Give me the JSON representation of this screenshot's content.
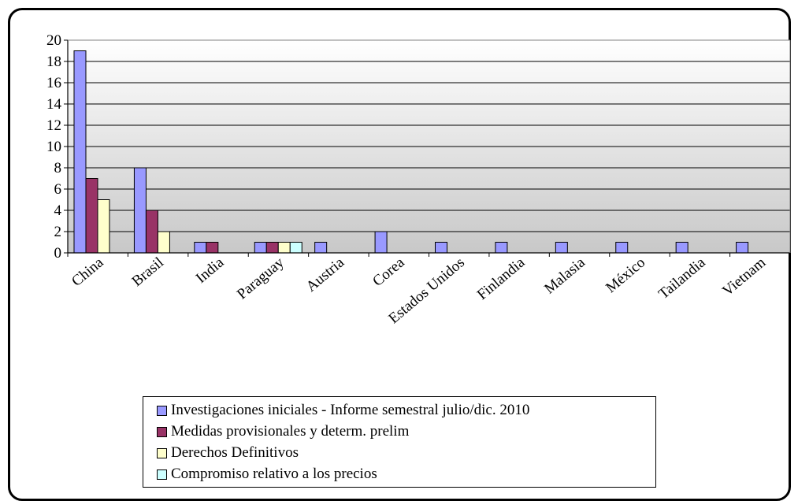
{
  "chart_data": {
    "type": "bar",
    "categories": [
      "China",
      "Brasil",
      "India",
      "Paraguay",
      "Austria",
      "Corea",
      "Estados Unidos",
      "Finlandia",
      "Malasia",
      "México",
      "Tailandia",
      "Vietnam"
    ],
    "series": [
      {
        "name": "Investigaciones iniciales - Informe semestral julio/dic. 2010",
        "color": "#9999ff",
        "values": [
          19,
          8,
          1,
          1,
          1,
          2,
          1,
          1,
          1,
          1,
          1,
          1
        ]
      },
      {
        "name": "Medidas provisionales y determ. prelim",
        "color": "#993366",
        "values": [
          7,
          4,
          1,
          1,
          0,
          0,
          0,
          0,
          0,
          0,
          0,
          0
        ]
      },
      {
        "name": "Derechos Definitivos",
        "color": "#ffffcc",
        "values": [
          5,
          2,
          0,
          1,
          0,
          0,
          0,
          0,
          0,
          0,
          0,
          0
        ]
      },
      {
        "name": "Compromiso relativo a los precios",
        "color": "#ccffff",
        "values": [
          0,
          0,
          0,
          1,
          0,
          0,
          0,
          0,
          0,
          0,
          0,
          0
        ]
      }
    ],
    "ylim": [
      0,
      20
    ],
    "yticks": [
      0,
      2,
      4,
      6,
      8,
      10,
      12,
      14,
      16,
      18,
      20
    ],
    "grid": true,
    "legend_position": "bottom"
  }
}
